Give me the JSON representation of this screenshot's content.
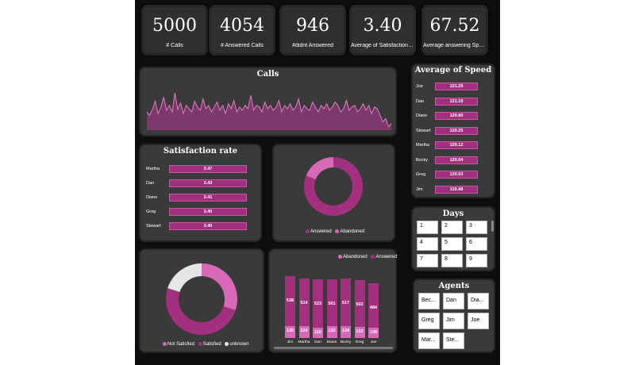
{
  "kpis": [
    {
      "value": "5000",
      "label": "# Calls"
    },
    {
      "value": "4054",
      "label": "# Answered Calls"
    },
    {
      "value": "946",
      "label": "#didnt Answered"
    },
    {
      "value": "3.40",
      "label": "Average of Satisfaction Rating"
    },
    {
      "value": "67.52",
      "label": "Average answering Speed"
    }
  ],
  "calls": {
    "title": "Calls",
    "values": [
      22,
      18,
      25,
      35,
      20,
      28,
      40,
      24,
      30,
      22,
      45,
      25,
      33,
      20,
      30,
      26,
      22,
      35,
      28,
      24,
      38,
      26,
      30,
      22,
      28,
      34,
      24,
      30,
      20,
      32,
      26,
      36,
      22,
      28,
      24,
      30,
      26,
      42,
      24,
      30,
      28,
      22,
      34,
      26,
      30,
      24,
      28,
      36,
      22,
      30,
      26,
      32,
      24,
      28,
      38,
      22,
      30,
      26,
      24,
      34,
      28,
      22,
      30,
      26,
      32,
      24,
      28,
      34,
      30,
      22,
      26,
      36,
      24,
      28,
      30,
      22,
      26,
      32,
      24,
      30,
      20,
      28,
      26,
      18,
      10,
      14,
      4,
      8
    ]
  },
  "speed": {
    "title": "Average of Speed",
    "rows": [
      {
        "name": "Joe",
        "value": "121.29"
      },
      {
        "name": "Dan",
        "value": "121.19"
      },
      {
        "name": "Diane",
        "value": "120.80"
      },
      {
        "name": "Stewart",
        "value": "120.25"
      },
      {
        "name": "Martha",
        "value": "120.12"
      },
      {
        "name": "Becky",
        "value": "120.04"
      },
      {
        "name": "Greg",
        "value": "120.03"
      },
      {
        "name": "Jim",
        "value": "119.48"
      }
    ]
  },
  "satisfaction": {
    "title": "Satisfaction rate",
    "rows": [
      {
        "name": "Martha",
        "value": "3.47"
      },
      {
        "name": "Dan",
        "value": "3.43"
      },
      {
        "name": "Diane",
        "value": "3.41"
      },
      {
        "name": "Greg",
        "value": "3.40"
      },
      {
        "name": "Stewart",
        "value": "3.40"
      }
    ]
  },
  "answered_donut": {
    "legend": [
      {
        "label": "Answered",
        "color": "#a3307f"
      },
      {
        "label": "Abandoned",
        "color": "#d868b8"
      }
    ],
    "slices": [
      0.81,
      0.19
    ]
  },
  "satisfied_donut": {
    "legend": [
      {
        "label": "Not Satisfied",
        "color": "#d868b8"
      },
      {
        "label": "Satisfied",
        "color": "#a3307f"
      },
      {
        "label": "unknown",
        "color": "#e6e6e6"
      }
    ],
    "slices": [
      0.3,
      0.5,
      0.2
    ]
  },
  "chart_data": {
    "type": "bar",
    "legend": [
      {
        "label": "Abandoned",
        "color": "#d868b8"
      },
      {
        "label": "Answered",
        "color": "#a3307f"
      }
    ],
    "categories": [
      "Jim",
      "Martha",
      "Dan",
      "Diane",
      "Becky",
      "Greg",
      "Joe"
    ],
    "series": [
      {
        "name": "Answered",
        "values": [
          538,
          514,
          523,
          501,
          517,
          502,
          484
        ]
      },
      {
        "name": "Abandoned",
        "values": [
          130,
          124,
          110,
          132,
          124,
          122,
          109
        ]
      }
    ]
  },
  "days": {
    "title": "Days",
    "items": [
      "1",
      "2",
      "3",
      "4",
      "5",
      "6",
      "7",
      "8",
      "9"
    ]
  },
  "agents": {
    "title": "Agents",
    "items": [
      "Bec...",
      "Dan",
      "Dia...",
      "Greg",
      "Jim",
      "Joe",
      "Mar...",
      "Ste..."
    ]
  }
}
